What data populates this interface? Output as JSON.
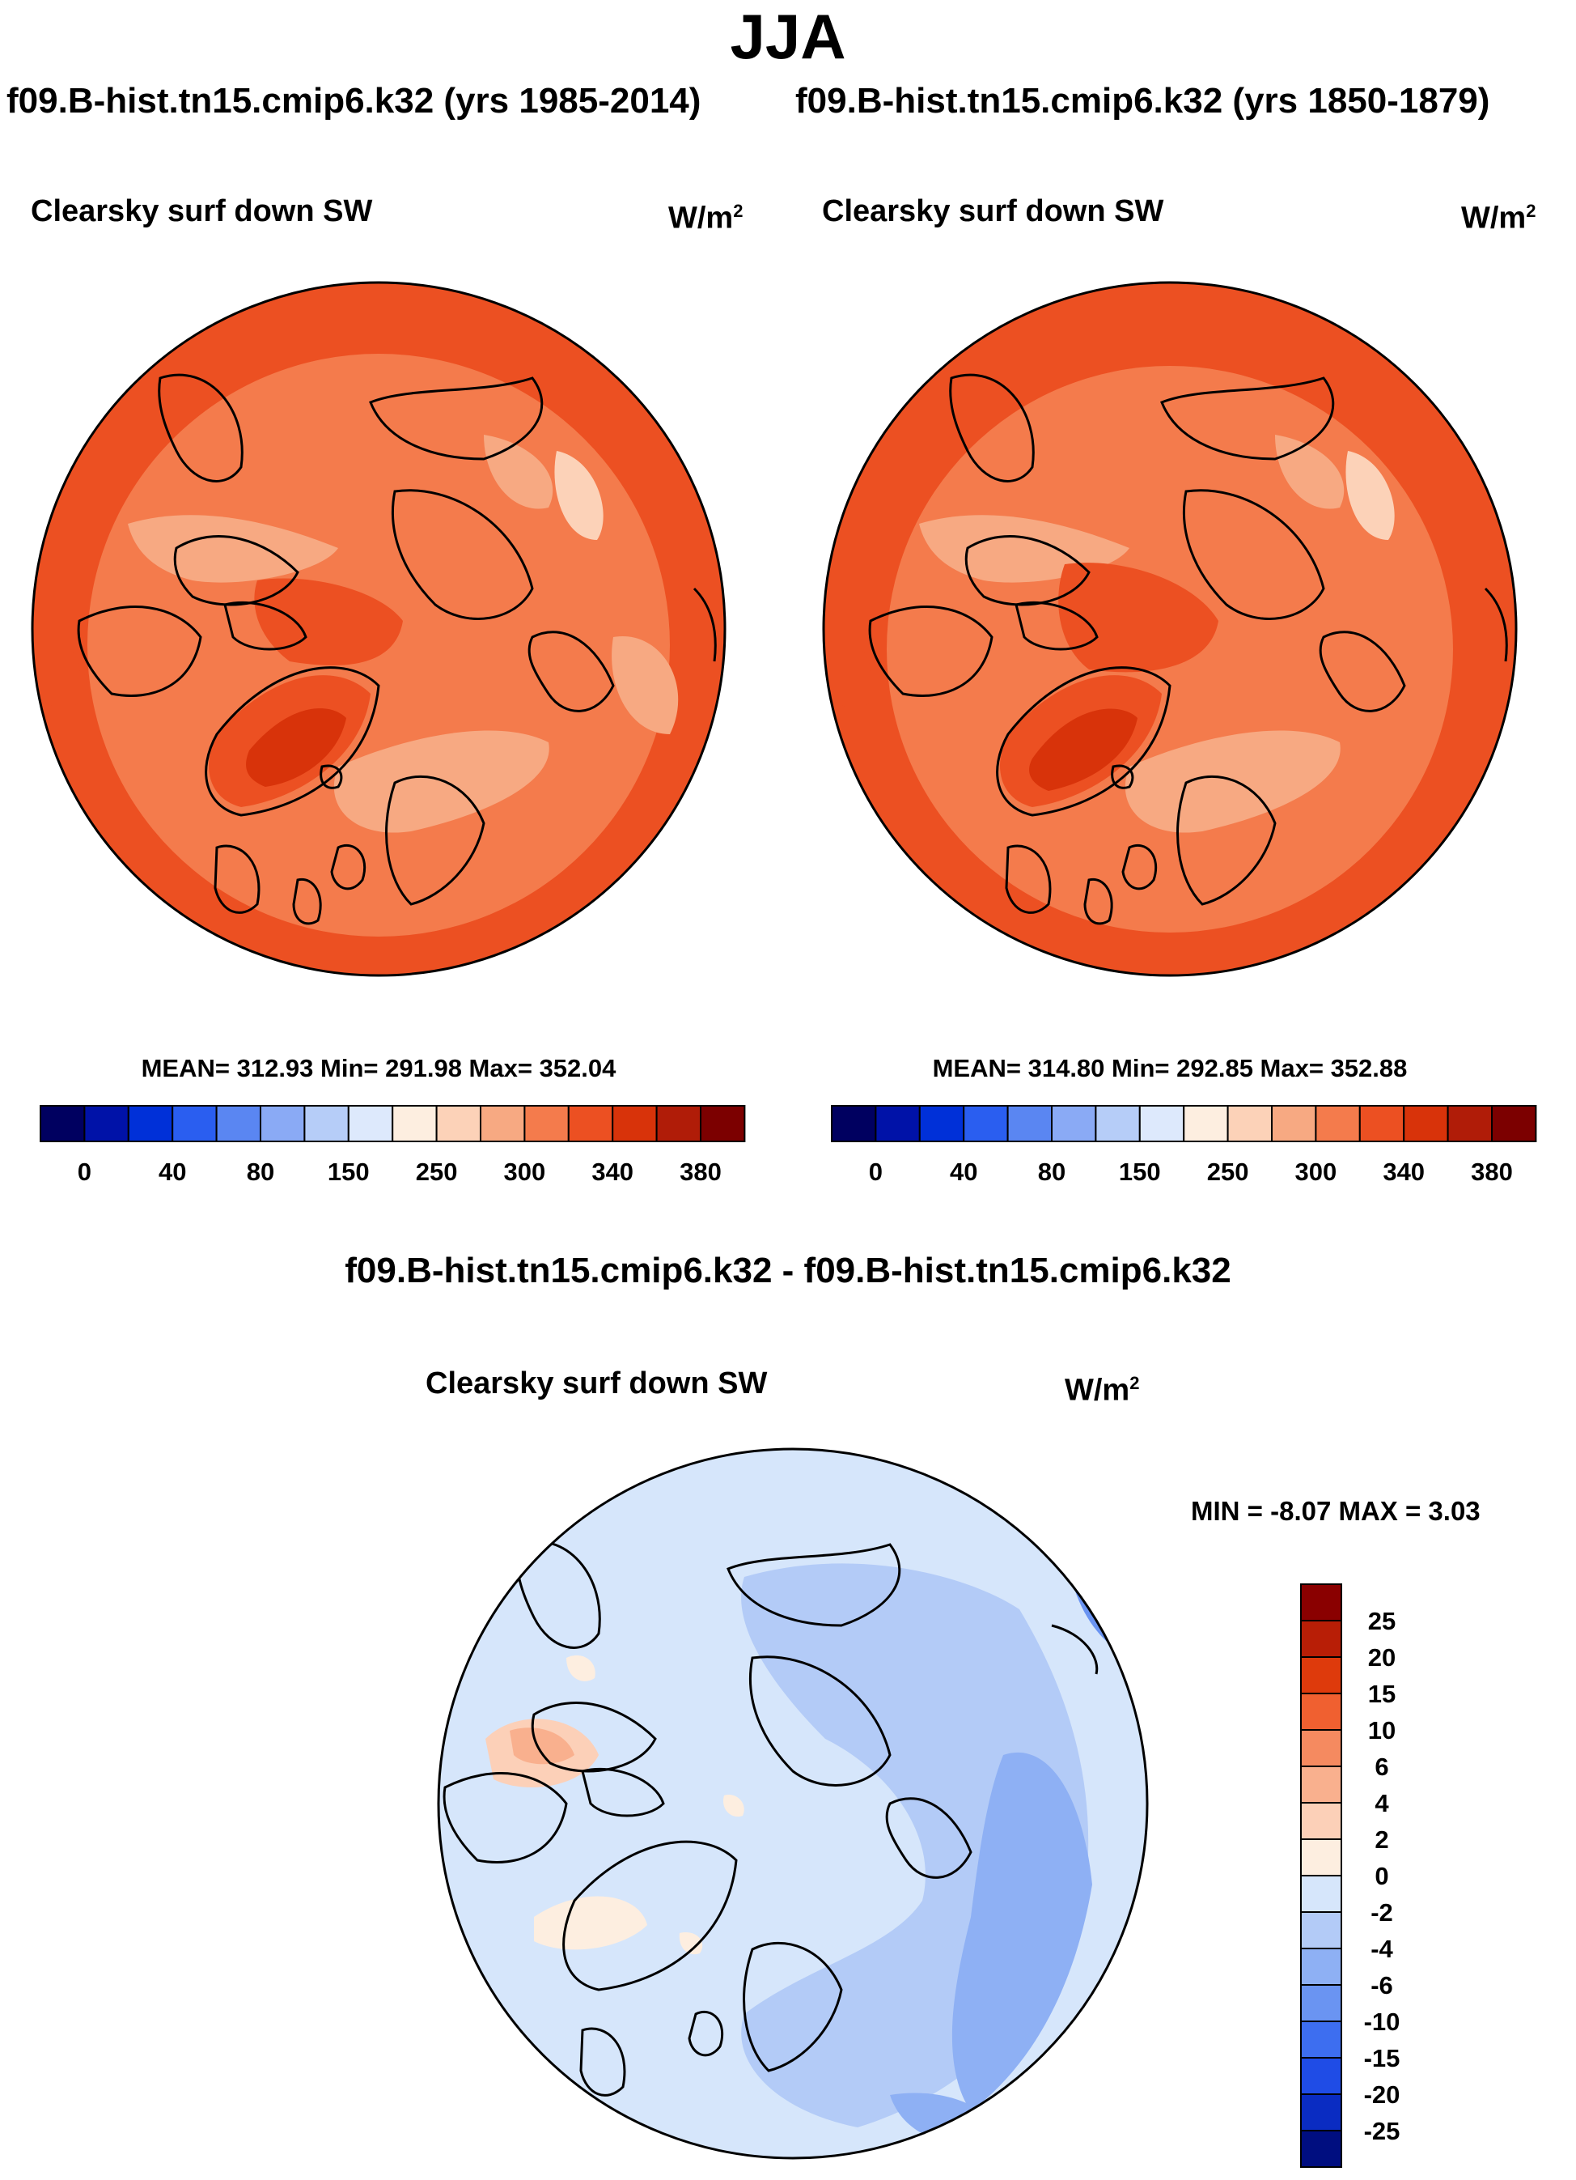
{
  "season": "JJA",
  "header": {
    "left": "f09.B-hist.tn15.cmip6.k32 (yrs 1985-2014)",
    "right": "f09.B-hist.tn15.cmip6.k32 (yrs 1850-1879)"
  },
  "panels": [
    {
      "variable": "Clearsky surf down SW",
      "units_base": "W/m",
      "units_exp": "2",
      "stats": "MEAN= 312.93  Min= 291.98  Max= 352.04"
    },
    {
      "variable": "Clearsky surf down SW",
      "units_base": "W/m",
      "units_exp": "2",
      "stats": "MEAN= 314.80  Min= 292.85  Max= 352.88"
    }
  ],
  "abs_colorbar": {
    "colors": [
      "#000060",
      "#0012a8",
      "#0030d8",
      "#2a5ef0",
      "#5a86f2",
      "#8aaaf5",
      "#b6cdf8",
      "#dde9fc",
      "#fdeee0",
      "#fcd2b8",
      "#f7a982",
      "#f47b4c",
      "#ec5022",
      "#d8330a",
      "#b01c08",
      "#7c0000"
    ],
    "labels": [
      "0",
      "40",
      "80",
      "150",
      "250",
      "300",
      "340",
      "380"
    ]
  },
  "diff": {
    "title": "f09.B-hist.tn15.cmip6.k32 - f09.B-hist.tn15.cmip6.k32",
    "variable": "Clearsky surf down SW",
    "units_base": "W/m",
    "units_exp": "2",
    "minmax": "MIN =  -8.07 MAX =   3.03",
    "colorbar": {
      "colors_top_to_bottom": [
        "#8a0000",
        "#b81e06",
        "#de3a0c",
        "#f06030",
        "#f58a60",
        "#f9b08e",
        "#fcd0b8",
        "#fdeee0",
        "#d6e6fb",
        "#b3cbf7",
        "#8eb0f4",
        "#6a94f2",
        "#3d6ef0",
        "#1f4ce6",
        "#0a2cc2",
        "#000e80"
      ],
      "labels_top_to_bottom": [
        "25",
        "20",
        "15",
        "10",
        "6",
        "4",
        "2",
        "0",
        "-2",
        "-4",
        "-6",
        "-10",
        "-15",
        "-20",
        "-25"
      ]
    }
  }
}
